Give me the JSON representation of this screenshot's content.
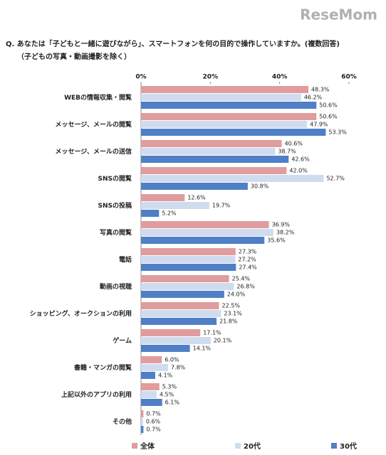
{
  "logo": "ReseMom",
  "chart_data": {
    "type": "hbar",
    "title": "Q. あなたは「子どもと一緒に遊びながら」、スマートフォンを何の目的で操作していますか。(複数回答)",
    "subtitle": "（子どもの写真・動画撮影を除く）",
    "categories": [
      "WEBの情報収集・閲覧",
      "メッセージ、メールの閲覧",
      "メッセージ、メールの送信",
      "SNSの閲覧",
      "SNSの投稿",
      "写真の閲覧",
      "電話",
      "動画の視聴",
      "ショッピング、オークションの利用",
      "ゲーム",
      "書籍・マンガの閲覧",
      "上記以外のアプリの利用",
      "その他"
    ],
    "series": [
      {
        "name": "全体",
        "color": "#e19c9d",
        "values": [
          48.3,
          50.6,
          40.6,
          42.0,
          12.6,
          36.9,
          27.3,
          25.4,
          22.5,
          17.1,
          6.0,
          5.3,
          0.7
        ],
        "value_labels": [
          "48.3%",
          "50.6%",
          "40.6%",
          "42.0%",
          "12.6%",
          "36.9%",
          "27.3%",
          "25.4%",
          "22.5%",
          "17.1%",
          "6.0%",
          "5.3%",
          "0.7%"
        ]
      },
      {
        "name": "20代",
        "color": "#cfdcef",
        "values": [
          46.2,
          47.9,
          38.7,
          52.7,
          19.7,
          38.2,
          27.2,
          26.8,
          23.1,
          20.1,
          7.8,
          4.5,
          0.6
        ],
        "value_labels": [
          "46.2%",
          "47.9%",
          "38.7%",
          "52.7%",
          "19.7%",
          "38.2%",
          "27.2%",
          "26.8%",
          "23.1%",
          "20.1%",
          "7.8%",
          "4.5%",
          "0.6%"
        ]
      },
      {
        "name": "30代",
        "color": "#4f7fc6",
        "values": [
          50.6,
          53.3,
          42.6,
          30.8,
          5.2,
          35.6,
          27.4,
          24.0,
          21.8,
          14.1,
          4.1,
          6.1,
          0.7
        ],
        "value_labels": [
          "50.6%",
          "53.3%",
          "42.6%",
          "30.8%",
          "5.2%",
          "35.6%",
          "27.4%",
          "24.0%",
          "21.8%",
          "14.1%",
          "4.1%",
          "6.1%",
          "0.7%"
        ]
      }
    ],
    "xlim": [
      0,
      60
    ],
    "xticks": [
      {
        "value": 0,
        "label": "0%"
      },
      {
        "value": 20,
        "label": "20%"
      },
      {
        "value": 40,
        "label": "40%"
      },
      {
        "value": 60,
        "label": "60%"
      }
    ]
  }
}
